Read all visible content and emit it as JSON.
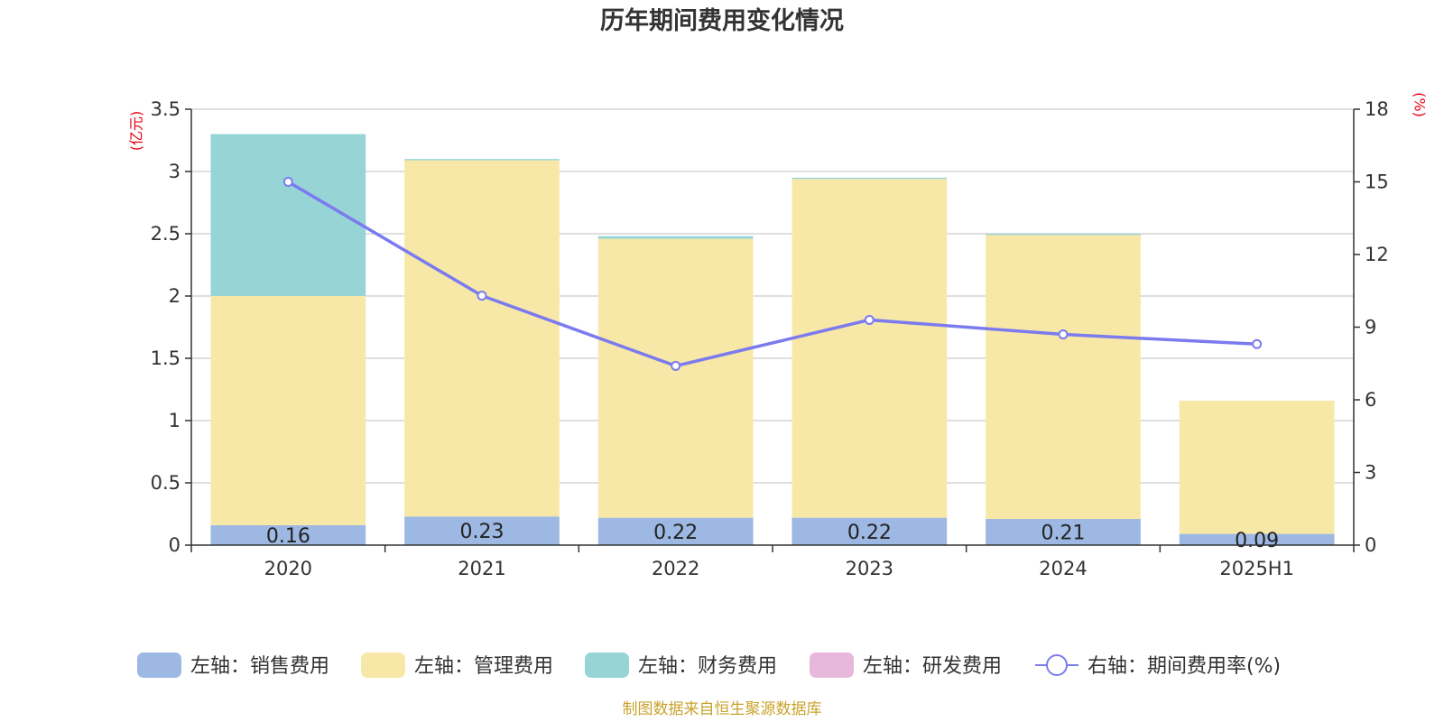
{
  "chart_data": {
    "type": "bar",
    "stacked": true,
    "title": "历年期间费用变化情况",
    "categories": [
      "2020",
      "2021",
      "2022",
      "2023",
      "2024",
      "2025H1"
    ],
    "left_axis": {
      "unit": "(亿元)",
      "min": 0,
      "max": 3.5,
      "ticks": [
        "0",
        "0.5",
        "1",
        "1.5",
        "2",
        "2.5",
        "3",
        "3.5"
      ]
    },
    "right_axis": {
      "unit": "(%)",
      "min": 0,
      "max": 18,
      "ticks": [
        "0",
        "3",
        "6",
        "9",
        "12",
        "15",
        "18"
      ]
    },
    "series": [
      {
        "name": "左轴：销售费用",
        "color": "#9db8e2",
        "axis": "left",
        "values": [
          0.16,
          0.23,
          0.22,
          0.22,
          0.21,
          0.09
        ],
        "labels": [
          "0.16",
          "0.23",
          "0.22",
          "0.22",
          "0.21",
          "0.09"
        ]
      },
      {
        "name": "左轴：管理费用",
        "color": "#f8e8a8",
        "axis": "left",
        "values": [
          1.84,
          2.86,
          2.24,
          2.72,
          2.28,
          1.07
        ]
      },
      {
        "name": "左轴：财务费用",
        "color": "#96d4d6",
        "axis": "left",
        "values": [
          1.3,
          0.01,
          0.02,
          0.01,
          0.01,
          0.0
        ]
      },
      {
        "name": "左轴：研发费用",
        "color": "#e8b8dc",
        "axis": "left",
        "values": [
          0,
          0,
          0,
          0,
          0,
          0
        ]
      }
    ],
    "line": {
      "name": "右轴：期间费用率(%)",
      "color": "#7b7bef",
      "axis": "right",
      "values": [
        15.0,
        10.3,
        7.4,
        9.3,
        8.7,
        8.3
      ]
    },
    "legend_position": "bottom",
    "grid": true
  },
  "source_note": "制图数据来自恒生聚源数据库"
}
